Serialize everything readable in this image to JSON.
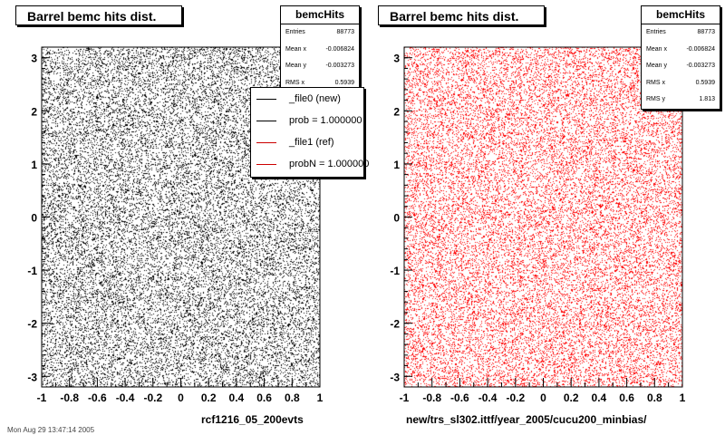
{
  "chart_data": [
    {
      "type": "scatter",
      "title": "Barrel bemc hits dist.",
      "xlabel": "rcf1216_05_200evts",
      "ylabel": "",
      "xlim": [
        -1,
        1
      ],
      "ylim": [
        -3.2,
        3.2
      ],
      "x_ticks": [
        "-1",
        "-0.8",
        "-0.6",
        "-0.4",
        "-0.2",
        "0",
        "0.2",
        "0.4",
        "0.6",
        "0.8",
        "1"
      ],
      "y_ticks": [
        "-3",
        "-2",
        "-1",
        "0",
        "1",
        "2",
        "3"
      ],
      "distribution": "uniform",
      "marker_color": "#000000",
      "series": [
        {
          "name": "_file0 (new)",
          "color": "#000000"
        }
      ],
      "stats": {
        "name": "bemcHits",
        "rows": [
          {
            "label": "Entries",
            "value": "88773"
          },
          {
            "label": "Mean x",
            "value": "-0.006824"
          },
          {
            "label": "Mean y",
            "value": "-0.003273"
          },
          {
            "label": "RMS x",
            "value": "0.5939"
          }
        ]
      },
      "legend": {
        "position": "top-right",
        "entries": [
          {
            "label": "_file0 (new)",
            "color": "#000000"
          },
          {
            "label": "prob = 1.000000",
            "color": "#000000"
          },
          {
            "label": "_file1 (ref)",
            "color": "#cc0000"
          },
          {
            "label": "probN = 1.000000",
            "color": "#cc0000"
          }
        ]
      }
    },
    {
      "type": "scatter",
      "title": "Barrel bemc hits dist.",
      "xlabel": "new/trs_sl302.ittf/year_2005/cucu200_minbias/",
      "ylabel": "",
      "xlim": [
        -1,
        1
      ],
      "ylim": [
        -3.2,
        3.2
      ],
      "x_ticks": [
        "-1",
        "-0.8",
        "-0.6",
        "-0.4",
        "-0.2",
        "0",
        "0.2",
        "0.4",
        "0.6",
        "0.8",
        "1"
      ],
      "y_ticks": [
        "-3",
        "-2",
        "-1",
        "0",
        "1",
        "2",
        "3"
      ],
      "distribution": "uniform",
      "marker_color": "#ff0000",
      "series": [
        {
          "name": "_file1 (ref)",
          "color": "#ff0000"
        }
      ],
      "stats": {
        "name": "bemcHits",
        "rows": [
          {
            "label": "Entries",
            "value": "88773"
          },
          {
            "label": "Mean x",
            "value": "-0.006824"
          },
          {
            "label": "Mean y",
            "value": "-0.003273"
          },
          {
            "label": "RMS x",
            "value": "0.5939"
          },
          {
            "label": "RMS y",
            "value": "1.813"
          }
        ]
      }
    }
  ],
  "footer": "Mon Aug 29 13:47:14 2005"
}
